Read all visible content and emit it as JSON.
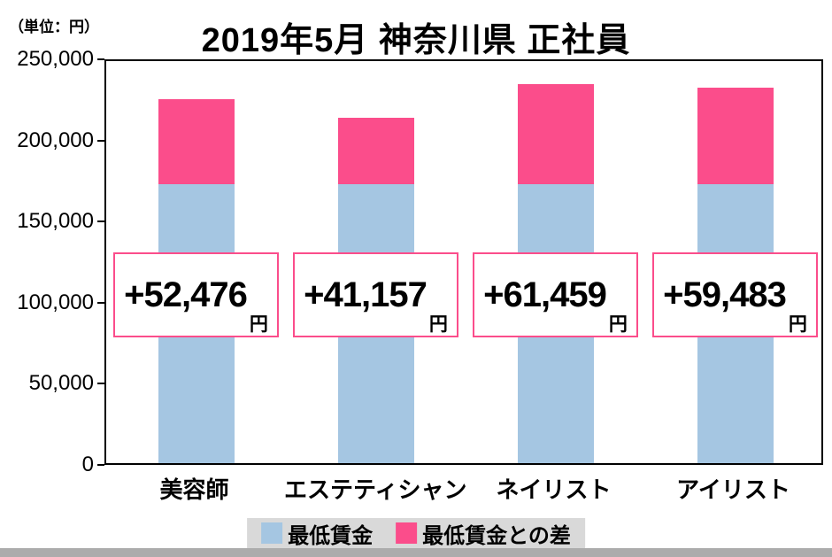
{
  "unit_label": "（単位：円）",
  "title": "2019年5月 神奈川県 正社員",
  "colors": {
    "base_series": "#a5c6e2",
    "diff_series": "#fb4d8b",
    "legend_bg": "#d9d9d9",
    "bottom_strip": "#acacac",
    "diff_box_border": "#fb4d8b"
  },
  "chart_data": {
    "type": "bar",
    "stacked": true,
    "title": "2019年5月 神奈川県 正社員",
    "unit": "円",
    "categories": [
      "美容師",
      "エステティシャン",
      "ネイリスト",
      "アイリスト"
    ],
    "series": [
      {
        "name": "最低賃金",
        "color": "#a5c6e2",
        "values": [
          172000,
          172000,
          172000,
          172000
        ]
      },
      {
        "name": "最低賃金との差",
        "color": "#fb4d8b",
        "values": [
          52476,
          41157,
          61459,
          59483
        ]
      }
    ],
    "totals": [
      224476,
      213157,
      233459,
      231483
    ],
    "diff_labels": [
      "+52,476",
      "+41,157",
      "+61,459",
      "+59,483"
    ],
    "diff_label_suffix": "円",
    "ylim": [
      0,
      250000
    ],
    "yticks": [
      0,
      50000,
      100000,
      150000,
      200000,
      250000
    ],
    "ytick_labels": [
      "0",
      "50,000",
      "100,000",
      "150,000",
      "200,000",
      "250,000"
    ],
    "grid": false,
    "legend_position": "bottom",
    "legend": [
      {
        "label": "最低賃金",
        "color": "#a5c6e2"
      },
      {
        "label": "最低賃金との差",
        "color": "#fb4d8b"
      }
    ]
  }
}
